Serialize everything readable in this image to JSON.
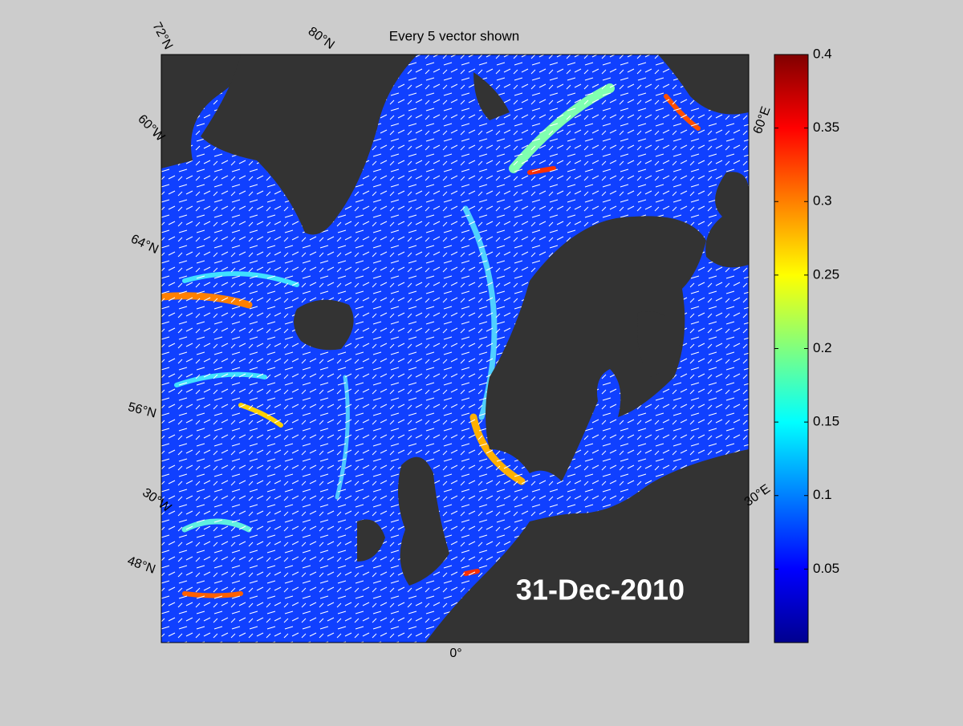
{
  "map": {
    "title": "Every 5 vector shown",
    "date_label": "31-Dec-2010",
    "grid_labels": [
      "72°N",
      "80°N",
      "60°W",
      "64°N",
      "56°N",
      "30°W",
      "48°N",
      "0°",
      "30°E",
      "60°E"
    ]
  },
  "colorbar": {
    "lim": [
      0,
      0.4
    ],
    "ticks": [
      0.05,
      0.1,
      0.15,
      0.2,
      0.25,
      0.3,
      0.35,
      0.4
    ]
  }
}
